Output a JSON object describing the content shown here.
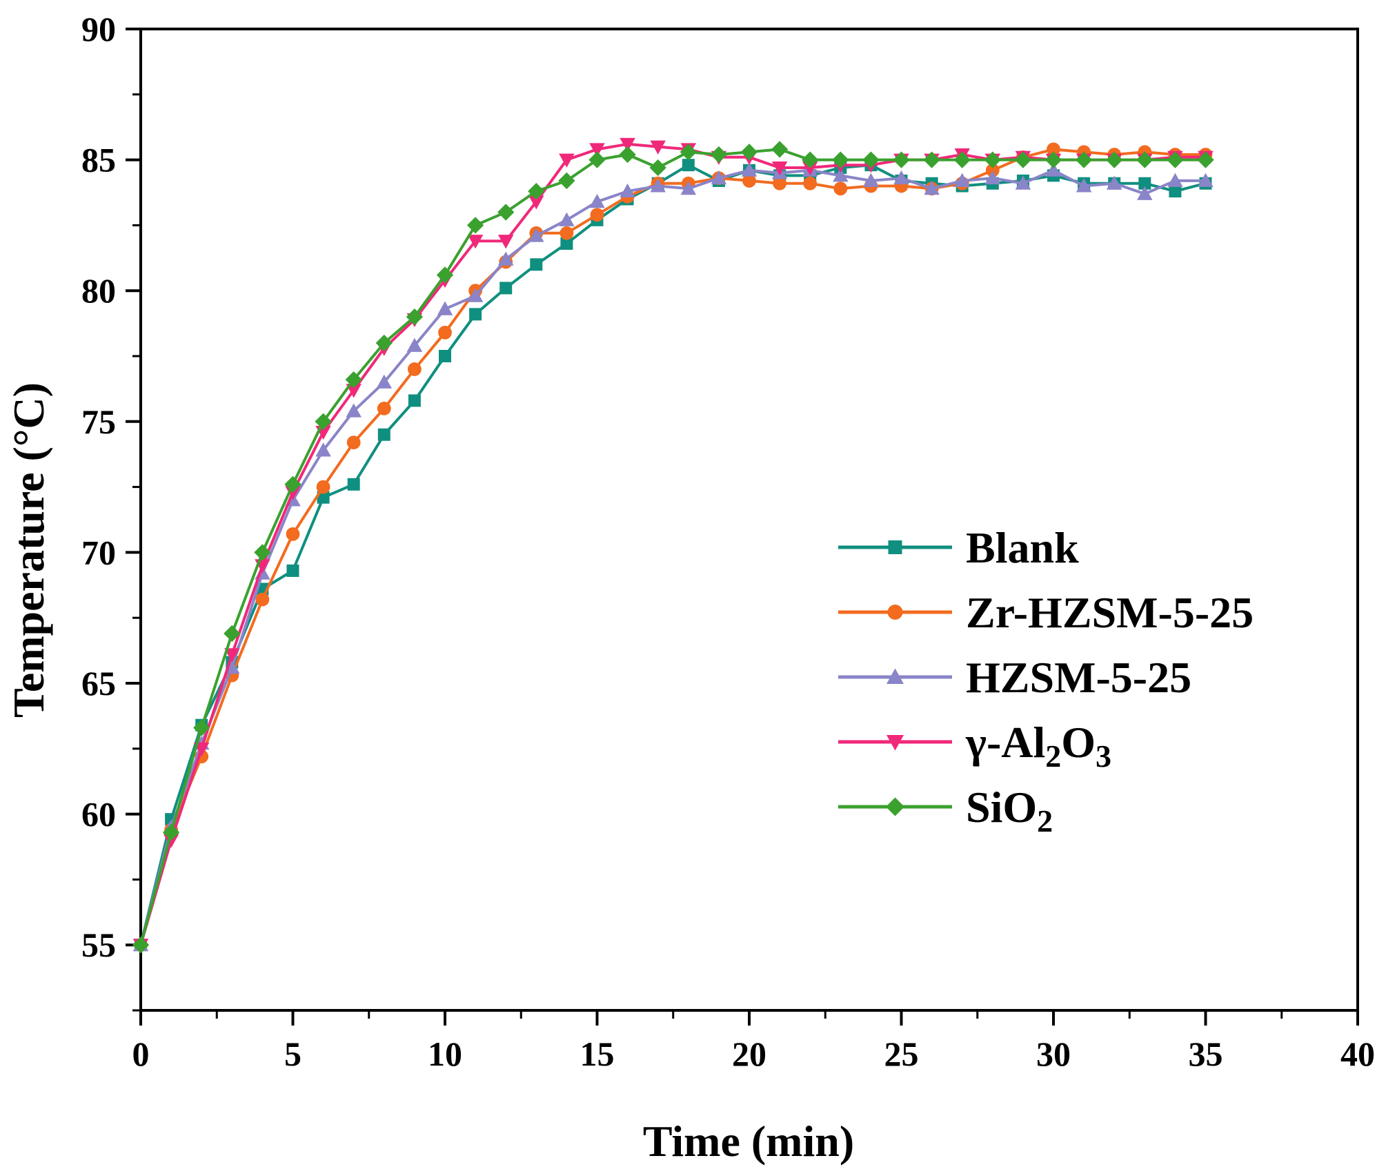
{
  "chart_data": {
    "type": "line",
    "title": "",
    "xlabel": "Time (min)",
    "ylabel": "Temperature (°C)",
    "xlim": [
      0,
      40
    ],
    "ylim": [
      52.5,
      90
    ],
    "x_ticks": [
      0,
      5,
      10,
      15,
      20,
      25,
      30,
      35,
      40
    ],
    "y_ticks": [
      55,
      60,
      65,
      70,
      75,
      80,
      85,
      90
    ],
    "x_tick_labels": [
      "0",
      "5",
      "10",
      "15",
      "20",
      "25",
      "30",
      "35",
      "40"
    ],
    "y_tick_labels": [
      "55",
      "60",
      "65",
      "70",
      "75",
      "80",
      "85",
      "90"
    ],
    "grid": false,
    "legend_position": "center-right",
    "x": [
      0,
      1,
      2,
      3,
      4,
      5,
      6,
      7,
      8,
      9,
      10,
      11,
      12,
      13,
      14,
      15,
      16,
      17,
      18,
      19,
      20,
      21,
      22,
      23,
      24,
      25,
      26,
      27,
      28,
      29,
      30,
      31,
      32,
      33,
      34,
      35
    ],
    "series": [
      {
        "name": "Blank",
        "label_main": "Blank",
        "label_sub": "",
        "label_rest": "",
        "label_sub2": "",
        "color": "#0f8f7f",
        "marker": "square",
        "values": [
          55,
          59.8,
          63.4,
          65.8,
          68.6,
          69.3,
          72.1,
          72.6,
          74.5,
          75.8,
          77.5,
          79.1,
          80.1,
          81,
          81.8,
          82.7,
          83.5,
          84.1,
          84.8,
          84.2,
          84.6,
          84.4,
          84.4,
          84.7,
          84.8,
          84.2,
          84.1,
          84,
          84.1,
          84.2,
          84.4,
          84.1,
          84.1,
          84.1,
          83.8,
          84.1
        ]
      },
      {
        "name": "Zr-HZSM-5-25",
        "label_main": "Zr-HZSM-5-25",
        "label_sub": "",
        "label_rest": "",
        "label_sub2": "",
        "color": "#f26b1f",
        "marker": "circle",
        "values": [
          55,
          59.4,
          62.2,
          65.3,
          68.2,
          70.7,
          72.5,
          74.2,
          75.5,
          77,
          78.4,
          80,
          81.1,
          82.2,
          82.2,
          82.9,
          83.6,
          84.1,
          84.1,
          84.3,
          84.2,
          84.1,
          84.1,
          83.9,
          84,
          84,
          83.9,
          84.1,
          84.6,
          85.1,
          85.4,
          85.3,
          85.2,
          85.3,
          85.2,
          85.2
        ]
      },
      {
        "name": "HZSM-5-25",
        "label_main": "HZSM-5-25",
        "label_sub": "",
        "label_rest": "",
        "label_sub2": "",
        "color": "#8a84c8",
        "marker": "triangle-up",
        "values": [
          55,
          59.5,
          62.7,
          65.6,
          69.2,
          72,
          73.9,
          75.4,
          76.5,
          77.9,
          79.3,
          79.8,
          81.2,
          82.1,
          82.7,
          83.4,
          83.8,
          84,
          83.9,
          84.3,
          84.6,
          84.5,
          84.6,
          84.4,
          84.2,
          84.3,
          83.9,
          84.2,
          84.3,
          84.1,
          84.6,
          84,
          84.1,
          83.7,
          84.2,
          84.2
        ]
      },
      {
        "name": "γ-Al2O3",
        "label_main": "γ-Al",
        "label_sub": "2",
        "label_rest": "O",
        "label_sub2": "3",
        "color": "#f0287a",
        "marker": "triangle-down",
        "values": [
          55,
          59,
          62.5,
          66.1,
          69.5,
          72.3,
          74.6,
          76.2,
          77.8,
          78.9,
          80.4,
          81.9,
          81.9,
          83.4,
          85,
          85.4,
          85.6,
          85.5,
          85.4,
          85.1,
          85.1,
          84.7,
          84.7,
          84.8,
          84.8,
          85,
          85,
          85.2,
          85,
          85.1,
          85,
          85,
          85,
          85,
          85.1,
          85.1
        ]
      },
      {
        "name": "SiO2",
        "label_main": "SiO",
        "label_sub": "2",
        "label_rest": "",
        "label_sub2": "",
        "color": "#3aa12e",
        "marker": "diamond",
        "values": [
          55,
          59.3,
          63.3,
          66.9,
          70,
          72.6,
          75,
          76.6,
          78,
          79,
          80.6,
          82.5,
          83,
          83.8,
          84.2,
          85,
          85.2,
          84.7,
          85.3,
          85.2,
          85.3,
          85.4,
          85,
          85,
          85,
          85,
          85,
          85,
          85,
          85,
          85,
          85,
          85,
          85,
          85,
          85
        ]
      }
    ]
  }
}
